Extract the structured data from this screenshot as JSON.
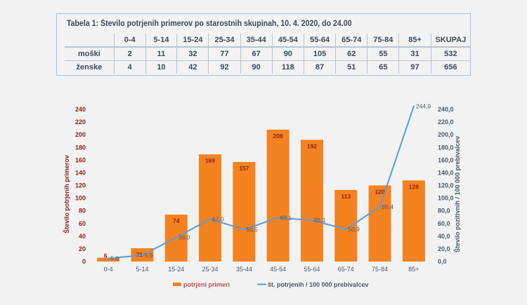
{
  "table": {
    "title": "Tabela 1: Število potrjenih primerov po starostnih skupinah, 10. 4. 2020, do 24.00",
    "columns": [
      "0-4",
      "5-14",
      "15-24",
      "25-34",
      "35-44",
      "45-54",
      "55-64",
      "65-74",
      "75-84",
      "85+",
      "SKUPAJ"
    ],
    "rows": [
      {
        "label": "moški",
        "values": [
          "2",
          "11",
          "32",
          "77",
          "67",
          "90",
          "105",
          "62",
          "55",
          "31",
          "532"
        ]
      },
      {
        "label": "ženske",
        "values": [
          "4",
          "10",
          "42",
          "92",
          "90",
          "118",
          "87",
          "51",
          "65",
          "97",
          "656"
        ]
      }
    ]
  },
  "chart_data": {
    "type": "bar",
    "categories": [
      "0-4",
      "5-14",
      "15-24",
      "25-34",
      "35-44",
      "45-54",
      "55-64",
      "65-74",
      "75-84",
      "85+"
    ],
    "series": [
      {
        "name": "potrjeni primeri",
        "type": "bar",
        "axis": "left",
        "color": "#f58220",
        "values": [
          6,
          21,
          74,
          169,
          157,
          208,
          192,
          113,
          120,
          128
        ],
        "labels": [
          "6",
          "21",
          "74",
          "169",
          "157",
          "208",
          "192",
          "113",
          "120",
          "128"
        ]
      },
      {
        "name": "št. potrjenih / 100 000 prebivalcev",
        "type": "line",
        "axis": "right",
        "color": "#5b9bd5",
        "values": [
          5.0,
          9.9,
          38.0,
          67.0,
          50.5,
          69.1,
          65.1,
          50.9,
          86.4,
          244.9
        ],
        "labels": [
          "5,0",
          "9,9",
          "38,0",
          "67,0",
          "50,5",
          "69,1",
          "65,1",
          "50,9",
          "86,4",
          "244,9"
        ]
      }
    ],
    "ylabel": "Število potrjenih primerov",
    "y2label": "Število pozitivnih / 100 000 prebivalcev",
    "ylim": [
      0,
      240
    ],
    "y2lim": [
      0,
      240
    ],
    "yticks": [
      "0",
      "20",
      "40",
      "60",
      "80",
      "100",
      "120",
      "140",
      "160",
      "180",
      "200",
      "220",
      "240"
    ],
    "y2ticks": [
      "0,0",
      "20,0",
      "40,0",
      "60,0",
      "80,0",
      "100,0",
      "120,0",
      "140,0",
      "160,0",
      "180,0",
      "200,0",
      "220,0",
      "240,0"
    ],
    "grid": false,
    "legend": "bottom",
    "legend_entries": [
      "potrjeni primeri",
      "št. potrjenih / 100 000 prebivalcev"
    ]
  }
}
